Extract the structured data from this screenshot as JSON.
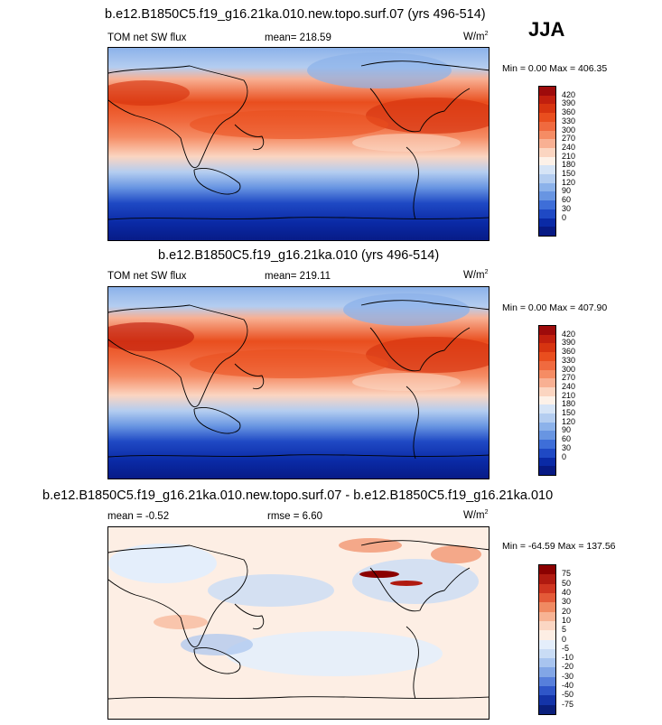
{
  "season": "JJA",
  "panels": [
    {
      "title": "b.e12.B1850C5.f19_g16.21ka.010.new.topo.surf.07 (yrs 496-514)",
      "variable": "TOM net SW flux",
      "stat": "mean= 218.59",
      "units": "W/m",
      "units_sup": "2",
      "minmax": "Min =   0.00 Max = 406.35",
      "colorbar_labels": [
        "420",
        "390",
        "360",
        "330",
        "300",
        "270",
        "240",
        "210",
        "180",
        "150",
        "120",
        "90",
        "60",
        "30",
        "0"
      ]
    },
    {
      "title": "b.e12.B1850C5.f19_g16.21ka.010 (yrs 496-514)",
      "variable": "TOM net SW flux",
      "stat": "mean= 219.11",
      "units": "W/m",
      "units_sup": "2",
      "minmax": "Min =   0.00 Max = 407.90",
      "colorbar_labels": [
        "420",
        "390",
        "360",
        "330",
        "300",
        "270",
        "240",
        "210",
        "180",
        "150",
        "120",
        "90",
        "60",
        "30",
        "0"
      ]
    },
    {
      "title": "b.e12.B1850C5.f19_g16.21ka.010.new.topo.surf.07 - b.e12.B1850C5.f19_g16.21ka.010",
      "variable": "mean =  -0.52",
      "stat": "rmse =   6.60",
      "units": "W/m",
      "units_sup": "2",
      "minmax": "Min = -64.59 Max = 137.56",
      "colorbar_labels": [
        "75",
        "50",
        "40",
        "30",
        "20",
        "10",
        "5",
        "0",
        "-5",
        "-10",
        "-20",
        "-30",
        "-40",
        "-50",
        "-75"
      ]
    }
  ],
  "colors": {
    "abs_scale": [
      "#9e0b0b",
      "#c11f0e",
      "#d73410",
      "#e94e1e",
      "#f06a3f",
      "#f58c64",
      "#f8b093",
      "#fbd5c1",
      "#fdf1e8",
      "#d6e4f6",
      "#b4cdf0",
      "#8cb2ea",
      "#6895e2",
      "#3e6ed8",
      "#1f49c4",
      "#0a2aa6",
      "#071a84"
    ],
    "diff_scale": [
      "#8b0000",
      "#b01a10",
      "#cf3520",
      "#e45a38",
      "#f08a62",
      "#f7b394",
      "#fbd6c3",
      "#fdeee4",
      "#e4eefb",
      "#c9dcf5",
      "#a8c4ef",
      "#82a6e6",
      "#577fdb",
      "#2f56c8",
      "#1434a8",
      "#0a1f7c"
    ]
  }
}
